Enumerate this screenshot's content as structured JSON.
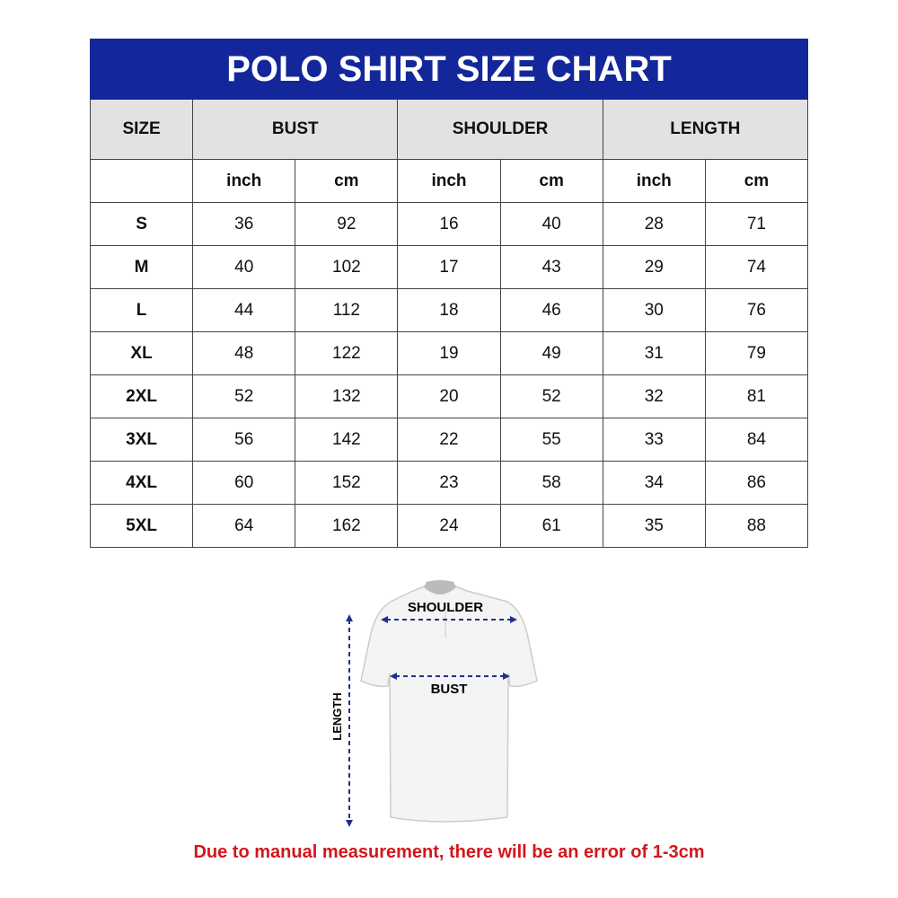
{
  "title": "POLO SHIRT SIZE CHART",
  "headers": [
    "SIZE",
    "BUST",
    "SHOULDER",
    "LENGTH"
  ],
  "units": [
    "inch",
    "cm",
    "inch",
    "cm",
    "inch",
    "cm"
  ],
  "rows": [
    [
      "S",
      "36",
      "92",
      "16",
      "40",
      "28",
      "71"
    ],
    [
      "M",
      "40",
      "102",
      "17",
      "43",
      "29",
      "74"
    ],
    [
      "L",
      "44",
      "112",
      "18",
      "46",
      "30",
      "76"
    ],
    [
      "XL",
      "48",
      "122",
      "19",
      "49",
      "31",
      "79"
    ],
    [
      "2XL",
      "52",
      "132",
      "20",
      "52",
      "32",
      "81"
    ],
    [
      "3XL",
      "56",
      "142",
      "22",
      "55",
      "33",
      "84"
    ],
    [
      "4XL",
      "60",
      "152",
      "23",
      "58",
      "34",
      "86"
    ],
    [
      "5XL",
      "64",
      "162",
      "24",
      "61",
      "35",
      "88"
    ]
  ],
  "diagram": {
    "shoulder": "SHOULDER",
    "bust": "BUST",
    "length": "LENGTH"
  },
  "note": "Due to manual measurement, there will be an error of 1-3cm",
  "colors": {
    "title_bg": "#13279a",
    "note": "#d3161b",
    "arrow": "#1f2f8f"
  }
}
